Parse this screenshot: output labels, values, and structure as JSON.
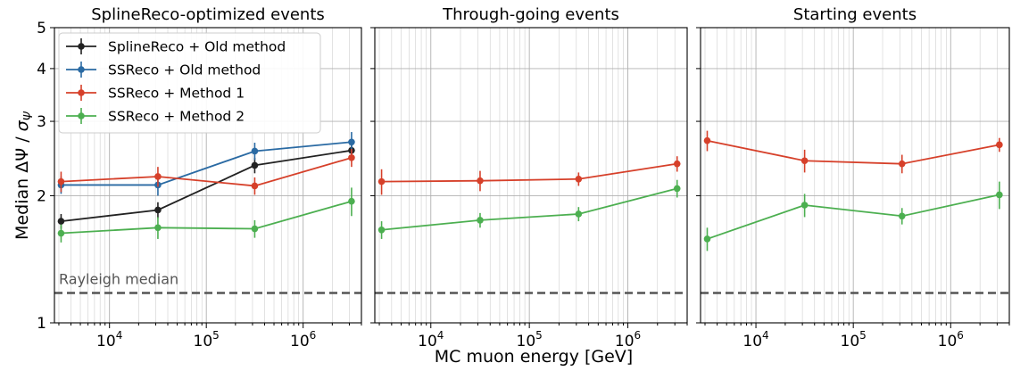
{
  "chart_data": {
    "type": "line",
    "ylabel": "Median ΔΨ / σ_Ψ",
    "xlabel": "MC muon energy [GeV]",
    "x_scale": "log",
    "y_scale": "log",
    "xlim": [
      2700,
      4000000
    ],
    "ylim": [
      1,
      5
    ],
    "y_ticks": [
      1,
      2,
      3,
      4,
      5
    ],
    "y_tick_labels": [
      "1",
      "2",
      "3",
      "4",
      "5"
    ],
    "x_ticks": [
      10000,
      100000,
      1000000
    ],
    "x_tick_labels": [
      {
        "base": "10",
        "exp": "4"
      },
      {
        "base": "10",
        "exp": "5"
      },
      {
        "base": "10",
        "exp": "6"
      }
    ],
    "grid": true,
    "legend_location": "upper left (first panel)",
    "reference_line": {
      "label": "Rayleigh median",
      "y": 1.177,
      "color": "#555555",
      "style": "dashed"
    },
    "x": [
      3162,
      31623,
      316228,
      3162278
    ],
    "panels": [
      {
        "title": "SplineReco-optimized events",
        "series": [
          {
            "name": "SplineReco + Old method",
            "color": "#222222",
            "values": [
              1.74,
              1.85,
              2.36,
              2.56
            ],
            "errors": [
              0.07,
              0.08,
              0.1,
              0.12
            ]
          },
          {
            "name": "SSReco + Old method",
            "color": "#2a6aa3",
            "values": [
              2.12,
              2.12,
              2.55,
              2.68
            ],
            "errors": [
              0.1,
              0.12,
              0.12,
              0.15
            ]
          },
          {
            "name": "SSReco + Method 1",
            "color": "#d6402a",
            "values": [
              2.16,
              2.22,
              2.11,
              2.46
            ],
            "errors": [
              0.12,
              0.12,
              0.1,
              0.12
            ]
          },
          {
            "name": "SSReco + Method 2",
            "color": "#4caf50",
            "values": [
              1.63,
              1.68,
              1.67,
              1.94
            ],
            "errors": [
              0.08,
              0.1,
              0.08,
              0.15
            ]
          }
        ]
      },
      {
        "title": "Through-going events",
        "series": [
          {
            "name": "SSReco + Method 1",
            "color": "#d6402a",
            "values": [
              2.16,
              2.17,
              2.19,
              2.38
            ],
            "errors": [
              0.15,
              0.12,
              0.08,
              0.1
            ]
          },
          {
            "name": "SSReco + Method 2",
            "color": "#4caf50",
            "values": [
              1.66,
              1.75,
              1.81,
              2.08
            ],
            "errors": [
              0.08,
              0.07,
              0.07,
              0.1
            ]
          }
        ]
      },
      {
        "title": "Starting events",
        "series": [
          {
            "name": "SSReco + Method 1",
            "color": "#d6402a",
            "values": [
              2.7,
              2.42,
              2.38,
              2.64
            ],
            "errors": [
              0.15,
              0.15,
              0.12,
              0.1
            ]
          },
          {
            "name": "SSReco + Method 2",
            "color": "#4caf50",
            "values": [
              1.58,
              1.9,
              1.79,
              2.01
            ],
            "errors": [
              0.1,
              0.12,
              0.08,
              0.15
            ]
          }
        ]
      }
    ]
  }
}
